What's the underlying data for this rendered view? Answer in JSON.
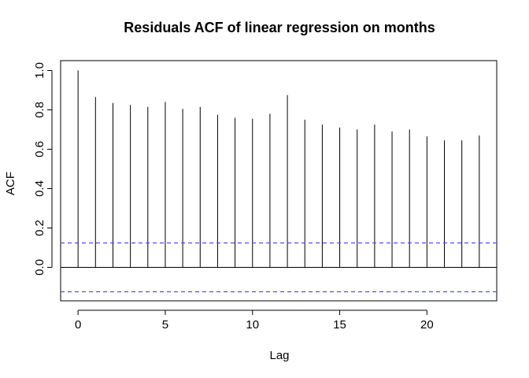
{
  "chart_data": {
    "type": "bar",
    "title": "Residuals ACF of linear regression on months",
    "xlabel": "Lag",
    "ylabel": "ACF",
    "xlim": [
      -1,
      24
    ],
    "ylim": [
      -0.17,
      1.05
    ],
    "x_ticks": [
      0,
      5,
      10,
      15,
      20
    ],
    "y_ticks": [
      0.0,
      0.2,
      0.4,
      0.6,
      0.8,
      1.0
    ],
    "x_tick_labels": [
      "0",
      "5",
      "10",
      "15",
      "20"
    ],
    "y_tick_labels": [
      "0.0",
      "0.2",
      "0.4",
      "0.6",
      "0.8",
      "1.0"
    ],
    "lags": [
      0,
      1,
      2,
      3,
      4,
      5,
      6,
      7,
      8,
      9,
      10,
      11,
      12,
      13,
      14,
      15,
      16,
      17,
      18,
      19,
      20,
      21,
      22,
      23
    ],
    "values": [
      1.0,
      0.865,
      0.835,
      0.825,
      0.815,
      0.84,
      0.805,
      0.815,
      0.775,
      0.76,
      0.755,
      0.78,
      0.875,
      0.75,
      0.725,
      0.71,
      0.7,
      0.725,
      0.69,
      0.7,
      0.665,
      0.645,
      0.645,
      0.67
    ],
    "confidence_bounds": [
      0.124,
      -0.124
    ],
    "confidence_line_color": "#4d4dff",
    "bar_color": "#000000",
    "grid": false,
    "legend": "none"
  }
}
